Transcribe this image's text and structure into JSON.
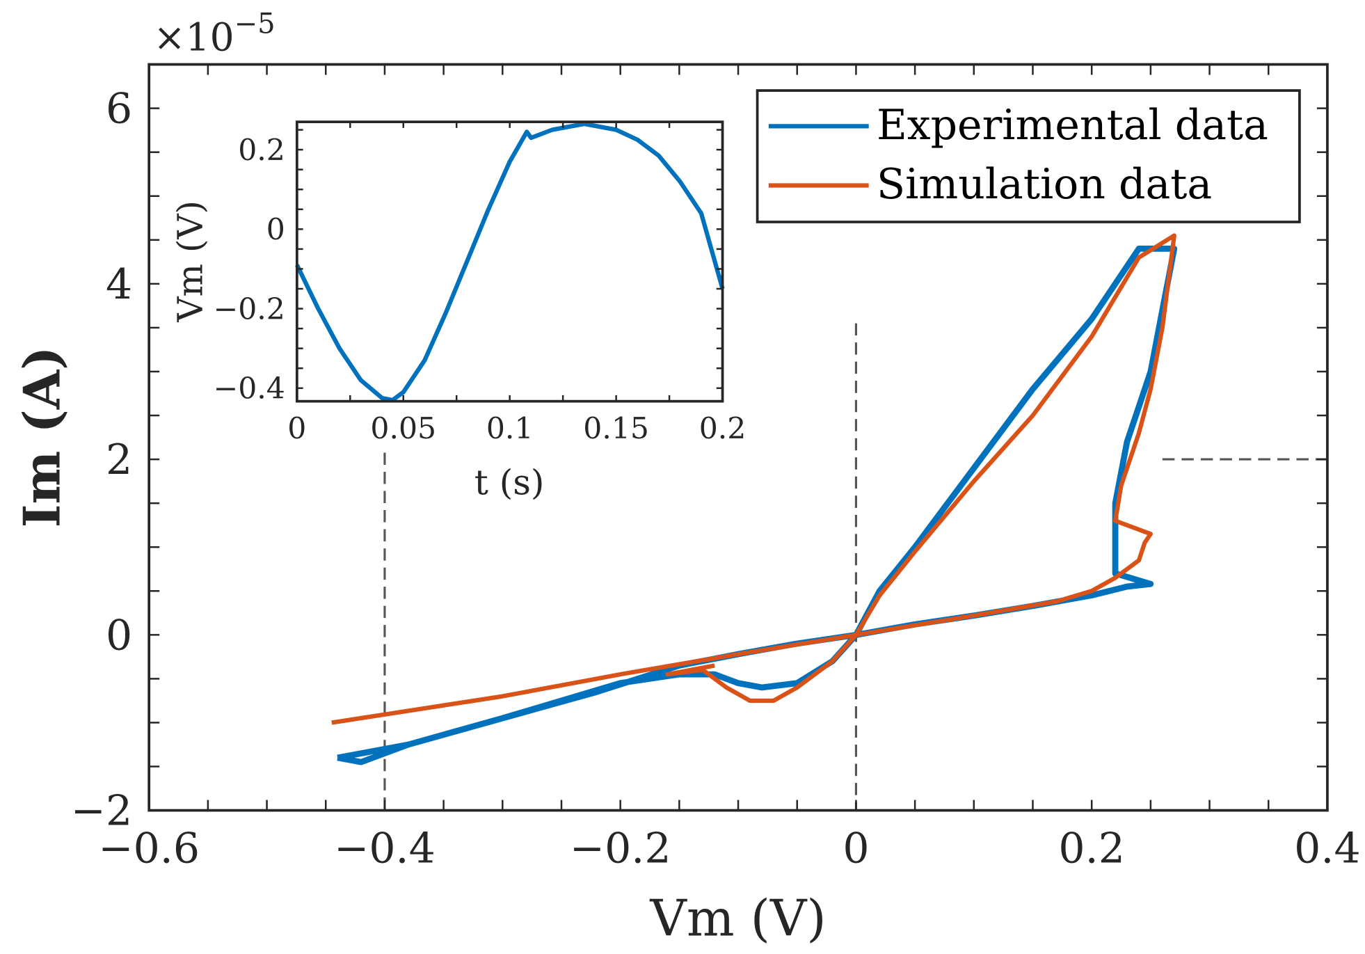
{
  "chart_data": [
    {
      "type": "line",
      "title": "",
      "xlabel": "Vm (V)",
      "ylabel": "Im (A)",
      "y_exponent_label": "×10",
      "y_exponent_power": "−5",
      "xlim": [
        -0.6,
        0.4
      ],
      "ylim": [
        -2,
        6.5
      ],
      "xticks": [
        -0.6,
        -0.4,
        -0.2,
        0,
        0.2,
        0.4
      ],
      "xtick_labels": [
        "−0.6",
        "−0.4",
        "−0.2",
        "0",
        "0.2",
        "0.4"
      ],
      "yticks": [
        -2,
        0,
        2,
        4,
        6
      ],
      "ytick_labels": [
        "−2",
        "0",
        "2",
        "4",
        "6"
      ],
      "grid": false,
      "legend": {
        "position": "top-right",
        "entries": [
          "Experimental data",
          "Simulation data"
        ]
      },
      "series": [
        {
          "name": "Experimental data",
          "color": "#0072BD",
          "x": [
            -0.44,
            -0.42,
            -0.38,
            -0.3,
            -0.22,
            -0.15,
            -0.1,
            -0.05,
            0,
            0.05,
            0.1,
            0.15,
            0.2,
            0.23,
            0.25,
            0.22,
            0.22,
            0.23,
            0.24,
            0.25,
            0.26,
            0.27,
            0.24,
            0.2,
            0.15,
            0.1,
            0.05,
            0.02,
            0,
            -0.02,
            -0.05,
            -0.08,
            -0.1,
            -0.12,
            -0.15,
            -0.2,
            -0.3,
            -0.38,
            -0.42,
            -0.44
          ],
          "y": [
            -1.4,
            -1.45,
            -1.25,
            -0.95,
            -0.65,
            -0.35,
            -0.22,
            -0.1,
            0,
            0.12,
            0.22,
            0.33,
            0.45,
            0.55,
            0.58,
            0.7,
            1.5,
            2.2,
            2.6,
            3.0,
            3.7,
            4.4,
            4.4,
            3.6,
            2.8,
            1.9,
            1.0,
            0.5,
            0,
            -0.3,
            -0.55,
            -0.6,
            -0.55,
            -0.45,
            -0.45,
            -0.55,
            -0.95,
            -1.25,
            -1.35,
            -1.4
          ]
        },
        {
          "name": "Simulation data",
          "color": "#D95319",
          "x": [
            -0.445,
            -0.3,
            -0.2,
            -0.1,
            0,
            0.1,
            0.17,
            0.2,
            0.22,
            0.24,
            0.245,
            0.25,
            0.24,
            0.22,
            0.225,
            0.24,
            0.25,
            0.26,
            0.27,
            0.24,
            0.2,
            0.15,
            0.1,
            0.05,
            0.02,
            0,
            -0.02,
            -0.05,
            -0.07,
            -0.09,
            -0.11,
            -0.13,
            -0.16,
            -0.12
          ],
          "y": [
            -1.0,
            -0.7,
            -0.45,
            -0.22,
            0,
            0.22,
            0.38,
            0.5,
            0.65,
            0.85,
            1.05,
            1.15,
            1.2,
            1.3,
            1.7,
            2.3,
            2.8,
            3.5,
            4.55,
            4.3,
            3.4,
            2.5,
            1.75,
            0.95,
            0.45,
            0,
            -0.3,
            -0.6,
            -0.75,
            -0.75,
            -0.6,
            -0.4,
            -0.45,
            -0.35
          ]
        }
      ],
      "reference_lines": [
        {
          "orientation": "vertical",
          "x": -0.4
        },
        {
          "orientation": "vertical",
          "x": 0
        },
        {
          "orientation": "horizontal",
          "y": 2
        }
      ]
    },
    {
      "type": "line",
      "title": "",
      "xlabel": "t (s)",
      "ylabel": "Vm (V)",
      "xlim": [
        0,
        0.2
      ],
      "ylim": [
        -0.433,
        0.27
      ],
      "xticks": [
        0,
        0.05,
        0.1,
        0.15,
        0.2
      ],
      "xtick_labels": [
        "0",
        "0.05",
        "0.1",
        "0.15",
        "0.2"
      ],
      "yticks": [
        -0.4,
        -0.2,
        0,
        0.2
      ],
      "ytick_labels": [
        "−0.4",
        "−0.2",
        "0",
        "0.2"
      ],
      "grid": false,
      "series": [
        {
          "name": "Vm",
          "color": "#0072BD",
          "x": [
            0,
            0.01,
            0.02,
            0.03,
            0.04,
            0.045,
            0.05,
            0.06,
            0.07,
            0.08,
            0.09,
            0.1,
            0.108,
            0.11,
            0.12,
            0.135,
            0.15,
            0.16,
            0.17,
            0.18,
            0.19,
            0.2
          ],
          "y": [
            -0.09,
            -0.2,
            -0.3,
            -0.38,
            -0.425,
            -0.43,
            -0.41,
            -0.33,
            -0.21,
            -0.08,
            0.05,
            0.17,
            0.245,
            0.23,
            0.25,
            0.265,
            0.25,
            0.225,
            0.185,
            0.12,
            0.04,
            -0.15
          ]
        }
      ]
    }
  ]
}
